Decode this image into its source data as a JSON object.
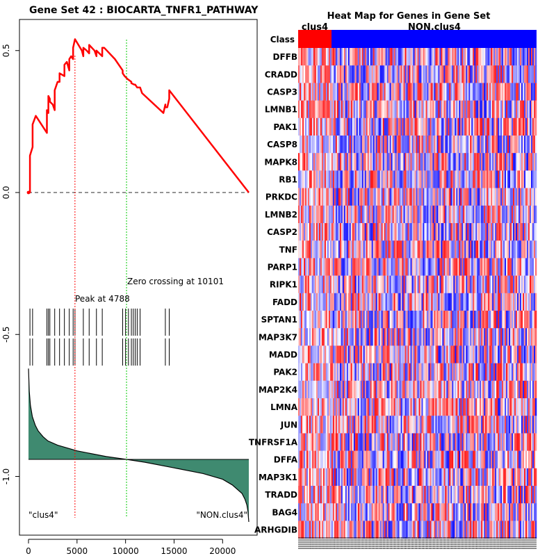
{
  "gsea_plot": {
    "title": "Gene Set  42 : BIOCARTA_TNFR1_PATHWAY",
    "x_ticks": [
      0,
      5000,
      10000,
      15000,
      20000
    ],
    "x_tick_labels": [
      "0",
      "5000",
      "10000",
      "15000",
      "20000"
    ],
    "y_ticks": [
      0.5,
      0.0,
      -0.5,
      -1.0
    ],
    "y_tick_labels": [
      "0.5",
      "0.0",
      "-0.5",
      "-1.0"
    ],
    "peak_label": "Peak at 4788",
    "zero_crossing_label": "Zero crossing at 10101",
    "left_label": "\"clus4\"",
    "right_label": "\"NON.clus4\"",
    "colors": {
      "es_line": "#ff0000",
      "peak_line": "#ff0000",
      "zero_line": "#00cc00",
      "ranked_fill": "#3f8a70",
      "hits": "#000000"
    }
  },
  "heatmap": {
    "title": "Heat Map for Genes in Gene Set",
    "class_label": "Class",
    "group1_label": "clus4",
    "group2_label": "NON.clus4",
    "genes": [
      "DFFB",
      "CRADD",
      "CASP3",
      "LMNB1",
      "PAK1",
      "CASP8",
      "MAPK8",
      "RB1",
      "PRKDC",
      "LMNB2",
      "CASP2",
      "TNF",
      "PARP1",
      "RIPK1",
      "FADD",
      "SPTAN1",
      "MAP3K7",
      "MADD",
      "PAK2",
      "MAP2K4",
      "LMNA",
      "JUN",
      "TNFRSF1A",
      "DFFA",
      "MAP3K1",
      "TRADD",
      "BAG4",
      "ARHGDIB"
    ],
    "colors": {
      "group1": "#ff0000",
      "group2": "#0000ff"
    }
  },
  "chart_data": {
    "type": "line",
    "title": "Gene Set  42 : BIOCARTA_TNFR1_PATHWAY",
    "xlabel": "",
    "ylabel": "",
    "xlim": [
      0,
      22700
    ],
    "ylim": [
      -1.17,
      0.61
    ],
    "peak_rank": 4788,
    "zero_crossing": 10101,
    "running_es": {
      "x": [
        0,
        150,
        150,
        420,
        420,
        750,
        1900,
        1900,
        2050,
        2050,
        2200,
        2200,
        2500,
        2700,
        2700,
        3000,
        3200,
        3200,
        3700,
        3700,
        3950,
        4200,
        4200,
        4400,
        4600,
        4600,
        4788,
        5500,
        5650,
        5650,
        6000,
        6250,
        6250,
        6800,
        7000,
        7000,
        7300,
        7600,
        7600,
        7800,
        8900,
        9700,
        9700,
        9900,
        10200,
        10600,
        10600,
        10900,
        11000,
        11200,
        11500,
        11700,
        13900,
        14100,
        14100,
        14300,
        14500,
        14500,
        22700
      ],
      "y": [
        0.0,
        0.0,
        0.13,
        0.16,
        0.24,
        0.27,
        0.21,
        0.29,
        0.28,
        0.34,
        0.33,
        0.32,
        0.31,
        0.29,
        0.36,
        0.39,
        0.39,
        0.42,
        0.41,
        0.45,
        0.46,
        0.43,
        0.47,
        0.48,
        0.47,
        0.51,
        0.54,
        0.5,
        0.48,
        0.51,
        0.5,
        0.49,
        0.52,
        0.5,
        0.48,
        0.5,
        0.49,
        0.48,
        0.51,
        0.51,
        0.47,
        0.43,
        0.42,
        0.41,
        0.4,
        0.39,
        0.385,
        0.38,
        0.38,
        0.37,
        0.37,
        0.35,
        0.28,
        0.31,
        0.3,
        0.3,
        0.33,
        0.36,
        0.0
      ]
    },
    "hit_ranks": [
      150,
      420,
      1900,
      2050,
      2200,
      2700,
      3200,
      3700,
      4200,
      4600,
      4788,
      5650,
      6250,
      7000,
      7600,
      9700,
      10000,
      10300,
      10600,
      10800,
      11000,
      11200,
      11500,
      14100,
      14500
    ],
    "ranked_metric": {
      "x": [
        0,
        80,
        200,
        400,
        700,
        1000,
        1500,
        2000,
        3000,
        5000,
        8000,
        10101,
        12000,
        15000,
        18000,
        20000,
        21000,
        22000,
        22300,
        22500,
        22600,
        22700
      ],
      "y": [
        -0.62,
        -0.7,
        -0.75,
        -0.79,
        -0.82,
        -0.84,
        -0.86,
        -0.875,
        -0.89,
        -0.91,
        -0.93,
        -0.94,
        -0.95,
        -0.97,
        -0.99,
        -1.01,
        -1.03,
        -1.06,
        -1.08,
        -1.1,
        -1.12,
        -1.16
      ]
    },
    "ranked_baseline": -0.94
  }
}
